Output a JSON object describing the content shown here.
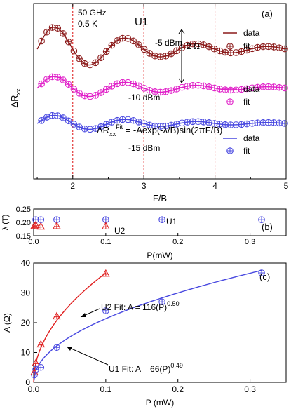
{
  "chart_data": [
    {
      "panel": "(a)",
      "type": "line",
      "xlabel": "F/B",
      "ylabel": "ΔR",
      "ylabel_sub": "xx",
      "xlim": [
        1.45,
        5.0
      ],
      "xticks": [
        "2",
        "3",
        "4",
        "5"
      ],
      "dashed_verticals": [
        2,
        3,
        4
      ],
      "annotations": {
        "freq": "50 GHz",
        "temp": "0.5 K",
        "sample": "U1",
        "scale": "2 Ω",
        "formula_lead": "ΔR",
        "formula_sub": "xx",
        "formula_sup": "Fit",
        "formula_tail": " = -Aexp(-λ/B)sin(2πF/B)"
      },
      "series": [
        {
          "power_label": "-5 dBm",
          "color": "#8b1a1a",
          "A": 1.9,
          "lambda": 0.2,
          "offset": 0.0,
          "legend_data": "data",
          "legend_fit": "fit"
        },
        {
          "power_label": "-10 dBm",
          "color": "#e020c8",
          "A": 1.0,
          "lambda": 0.2,
          "offset": -2.65,
          "legend_data": "data",
          "legend_fit": "fit"
        },
        {
          "power_label": "-15 dBm",
          "color": "#4848e0",
          "A": 0.7,
          "lambda": 0.2,
          "offset": -5.05,
          "legend_data": "data",
          "legend_fit": "fit"
        }
      ]
    },
    {
      "panel": "(b)",
      "type": "scatter",
      "xlabel": "P(mW)",
      "ylabel": "λ (T)",
      "xlim": [
        0,
        0.35
      ],
      "ylim": [
        0.15,
        0.25
      ],
      "xticks": [
        0.0,
        0.1,
        0.2,
        0.3
      ],
      "yticks": [
        0.15,
        0.2,
        0.25
      ],
      "series": [
        {
          "name": "U1",
          "color": "#4848e0",
          "marker": "circle",
          "x": [
            0.003,
            0.01,
            0.032,
            0.1,
            0.178,
            0.316
          ],
          "y": [
            0.21,
            0.21,
            0.21,
            0.21,
            0.21,
            0.21
          ]
        },
        {
          "name": "U2",
          "color": "#e02020",
          "marker": "triangle",
          "x": [
            0.001,
            0.003,
            0.01,
            0.032,
            0.1
          ],
          "y": [
            0.187,
            0.19,
            0.185,
            0.187,
            0.186
          ]
        }
      ]
    },
    {
      "panel": "(c)",
      "type": "scatter",
      "xlabel": "P (mW)",
      "ylabel": "A (Ω)",
      "xlim": [
        0,
        0.35
      ],
      "ylim": [
        0,
        40
      ],
      "xticks": [
        0.0,
        0.1,
        0.2,
        0.3
      ],
      "yticks": [
        0,
        10,
        20,
        30,
        40
      ],
      "series": [
        {
          "name": "U1",
          "color": "#4848e0",
          "marker": "circle",
          "x": [
            0.001,
            0.003,
            0.01,
            0.032,
            0.1,
            0.178,
            0.316
          ],
          "y": [
            2.5,
            4.3,
            5.0,
            11.7,
            24.0,
            27.0,
            36.7
          ],
          "fit": {
            "coef": 66,
            "exp": 0.49,
            "label_lead": "U1 Fit: A = 66(P)",
            "label_sup": "0.49"
          }
        },
        {
          "name": "U2",
          "color": "#e02020",
          "marker": "triangle",
          "x": [
            0.001,
            0.003,
            0.01,
            0.032,
            0.1
          ],
          "y": [
            3.4,
            6.5,
            12.8,
            22.2,
            36.5
          ],
          "fit": {
            "coef": 116,
            "exp": 0.5,
            "label_lead": "U2 Fit: A = 116(P)",
            "label_sup": "0.50"
          }
        }
      ]
    }
  ]
}
